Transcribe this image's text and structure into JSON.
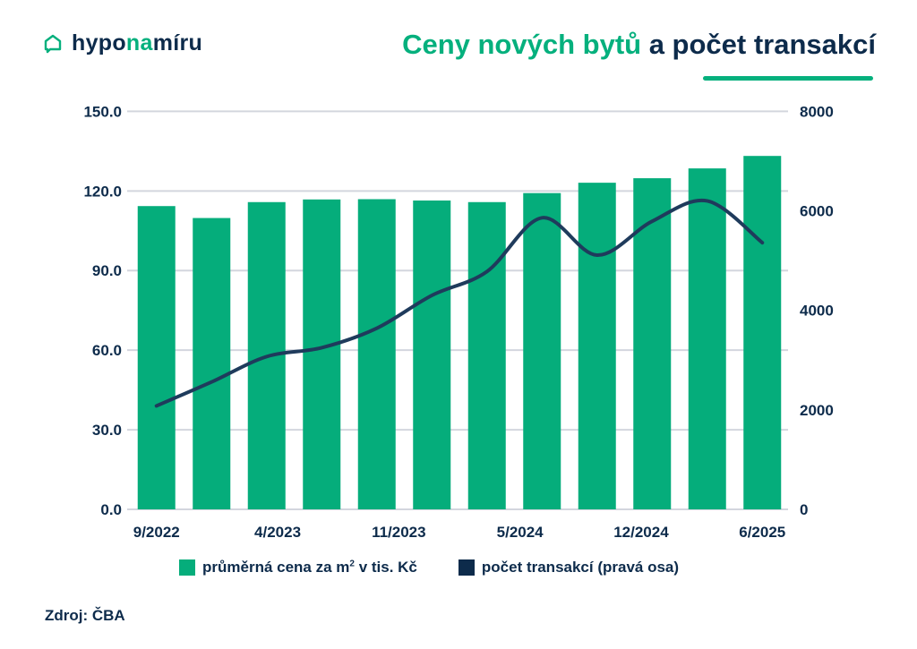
{
  "logo": {
    "part1": "hypo",
    "part2": "na",
    "part3": "míru"
  },
  "title": {
    "part_green": "Ceny nových bytů",
    "part_navy": "a počet transakcí"
  },
  "source": "Zdroj: ČBA",
  "colors": {
    "bar": "#05ad7b",
    "line": "#1f3b5c",
    "navy": "#0d2b4b",
    "grid": "#d3d6de"
  },
  "chart_data": {
    "type": "bar+line",
    "title": "Ceny nových bytů a počet transakcí",
    "x_tick_labels": [
      "9/2022",
      "4/2023",
      "11/2023",
      "5/2024",
      "12/2024",
      "6/2025"
    ],
    "series": [
      {
        "name": "průměrná cena za m² v tis. Kč",
        "type": "bar",
        "axis": "left",
        "values": [
          114.3,
          109.8,
          115.8,
          116.8,
          116.9,
          116.4,
          115.8,
          119.2,
          123.1,
          124.8,
          128.5,
          133.2
        ]
      },
      {
        "name": "počet transakcí (pravá osa)",
        "type": "line",
        "axis": "right",
        "values": [
          2080,
          2560,
          3070,
          3250,
          3640,
          4300,
          4780,
          5860,
          5110,
          5790,
          6200,
          5360
        ]
      }
    ],
    "y_left": {
      "range": [
        0,
        150
      ],
      "ticks": [
        "0.0",
        "30.0",
        "60.0",
        "90.0",
        "120.0",
        "150.0"
      ]
    },
    "y_right": {
      "range": [
        0,
        8000
      ],
      "ticks": [
        "0",
        "2000",
        "4000",
        "6000",
        "8000"
      ]
    },
    "grid": true,
    "legend_position": "bottom",
    "legend": {
      "bar_label_pre": "průměrná cena za m",
      "bar_label_sup": "2",
      "bar_label_post": " v tis. Kč",
      "line_label": "počet transakcí (pravá osa)"
    }
  }
}
